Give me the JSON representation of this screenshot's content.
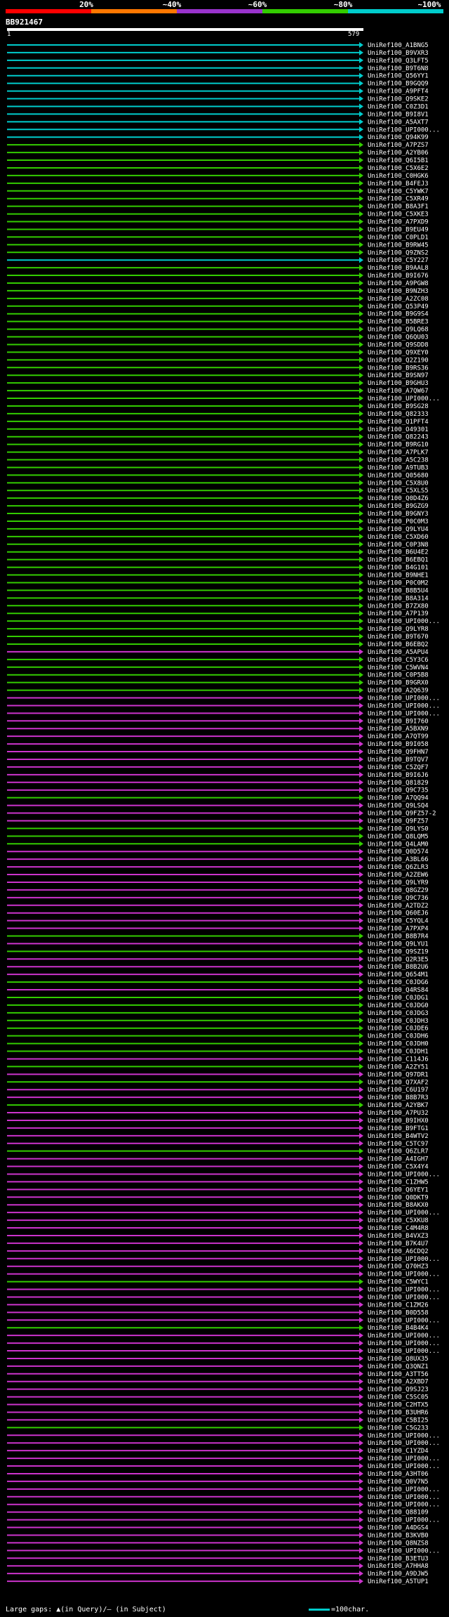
{
  "thresholds": [
    "20%",
    "~40%",
    "~60%",
    "~80%",
    "~100%"
  ],
  "colors": {
    "<20": "#ff0000",
    "20": "#ff7700",
    "40": "#9933cc",
    "60": "#cc33cc",
    "80": "#33cc00",
    "100": "#00cccc"
  },
  "query": {
    "name": "BB921467",
    "start": "1",
    "end": "579",
    "length": 579
  },
  "footer": {
    "gaps": "Large gaps: ▲(in Query)/— (in Subject)",
    "scale": "=100char."
  },
  "chart_data": {
    "type": "alignment-overview",
    "hits": [
      {
        "label": "UniRef100_A1BNG5",
        "c": "100"
      },
      {
        "label": "UniRef100_B9VXR3",
        "c": "100"
      },
      {
        "label": "UniRef100_Q3LFT5",
        "c": "100"
      },
      {
        "label": "UniRef100_B9T6N8",
        "c": "100"
      },
      {
        "label": "UniRef100_Q56YY1",
        "c": "100"
      },
      {
        "label": "UniRef100_B9GQQ9",
        "c": "100"
      },
      {
        "label": "UniRef100_A9PFT4",
        "c": "100"
      },
      {
        "label": "UniRef100_Q9SKE2",
        "c": "100"
      },
      {
        "label": "UniRef100_C0Z3D1",
        "c": "100"
      },
      {
        "label": "UniRef100_B9I8V1",
        "c": "100"
      },
      {
        "label": "UniRef100_A5AXT7",
        "c": "100"
      },
      {
        "label": "UniRef100_UPI000...",
        "c": "100"
      },
      {
        "label": "UniRef100_Q94K99",
        "c": "100"
      },
      {
        "label": "UniRef100_A7PZS7",
        "c": "80"
      },
      {
        "label": "UniRef100_A2YB06",
        "c": "80"
      },
      {
        "label": "UniRef100_Q6I5B1",
        "c": "80"
      },
      {
        "label": "UniRef100_C5X6E2",
        "c": "80"
      },
      {
        "label": "UniRef100_C0HGK6",
        "c": "80"
      },
      {
        "label": "UniRef100_B4FEJ3",
        "c": "80"
      },
      {
        "label": "UniRef100_C5YWK7",
        "c": "80"
      },
      {
        "label": "UniRef100_C5XR49",
        "c": "80"
      },
      {
        "label": "UniRef100_B8A3F1",
        "c": "80"
      },
      {
        "label": "UniRef100_C5XKE3",
        "c": "80"
      },
      {
        "label": "UniRef100_A7PXD9",
        "c": "80"
      },
      {
        "label": "UniRef100_B9EU49",
        "c": "80"
      },
      {
        "label": "UniRef100_C0PLD1",
        "c": "80"
      },
      {
        "label": "UniRef100_B9RW45",
        "c": "80"
      },
      {
        "label": "UniRef100_Q9ZNS2",
        "c": "80"
      },
      {
        "label": "UniRef100_C5Y227",
        "c": "100"
      },
      {
        "label": "UniRef100_B9AAL8",
        "c": "80"
      },
      {
        "label": "UniRef100_B9I676",
        "c": "80"
      },
      {
        "label": "UniRef100_A9PGW8",
        "c": "80"
      },
      {
        "label": "UniRef100_B9NZH3",
        "c": "80"
      },
      {
        "label": "UniRef100_A2ZC08",
        "c": "80"
      },
      {
        "label": "UniRef100_Q53P49",
        "c": "80"
      },
      {
        "label": "UniRef100_B9G9S4",
        "c": "80"
      },
      {
        "label": "UniRef100_B5BRE3",
        "c": "80"
      },
      {
        "label": "UniRef100_Q9LQ68",
        "c": "80"
      },
      {
        "label": "UniRef100_Q6QU03",
        "c": "80"
      },
      {
        "label": "UniRef100_Q9SDD8",
        "c": "80"
      },
      {
        "label": "UniRef100_Q9XEY0",
        "c": "80"
      },
      {
        "label": "UniRef100_Q2Z190",
        "c": "80"
      },
      {
        "label": "UniRef100_B9RS36",
        "c": "80"
      },
      {
        "label": "UniRef100_B9SN97",
        "c": "80"
      },
      {
        "label": "UniRef100_B9GHU3",
        "c": "80"
      },
      {
        "label": "UniRef100_A7QW67",
        "c": "80"
      },
      {
        "label": "UniRef100_UPI000...",
        "c": "80"
      },
      {
        "label": "UniRef100_B9SG28",
        "c": "80"
      },
      {
        "label": "UniRef100_Q82333",
        "c": "80"
      },
      {
        "label": "UniRef100_Q1PFT4",
        "c": "80"
      },
      {
        "label": "UniRef100_O49301",
        "c": "80"
      },
      {
        "label": "UniRef100_Q82243",
        "c": "80"
      },
      {
        "label": "UniRef100_B9RG10",
        "c": "80"
      },
      {
        "label": "UniRef100_A7PLK7",
        "c": "80"
      },
      {
        "label": "UniRef100_A5C238",
        "c": "80"
      },
      {
        "label": "UniRef100_A9TUB3",
        "c": "80"
      },
      {
        "label": "UniRef100_Q05680",
        "c": "80"
      },
      {
        "label": "UniRef100_C5X8U0",
        "c": "80"
      },
      {
        "label": "UniRef100_C5XLS5",
        "c": "80"
      },
      {
        "label": "UniRef100_Q0D4Z6",
        "c": "80"
      },
      {
        "label": "UniRef100_B9GZG9",
        "c": "80"
      },
      {
        "label": "UniRef100_B9GNY3",
        "c": "80"
      },
      {
        "label": "UniRef100_P0C0M3",
        "c": "80"
      },
      {
        "label": "UniRef100_Q9LYU4",
        "c": "80"
      },
      {
        "label": "UniRef100_C5XD60",
        "c": "80"
      },
      {
        "label": "UniRef100_C0P3N8",
        "c": "80"
      },
      {
        "label": "UniRef100_B6U4E2",
        "c": "80"
      },
      {
        "label": "UniRef100_B6EBQ1",
        "c": "80"
      },
      {
        "label": "UniRef100_B4G101",
        "c": "80"
      },
      {
        "label": "UniRef100_B9NHE1",
        "c": "80"
      },
      {
        "label": "UniRef100_P0C0M2",
        "c": "80"
      },
      {
        "label": "UniRef100_B8B5U4",
        "c": "80"
      },
      {
        "label": "UniRef100_B8A314",
        "c": "80"
      },
      {
        "label": "UniRef100_B7ZX80",
        "c": "80"
      },
      {
        "label": "UniRef100_A7P139",
        "c": "80"
      },
      {
        "label": "UniRef100_UPI000...",
        "c": "80"
      },
      {
        "label": "UniRef100_Q9LYR8",
        "c": "80"
      },
      {
        "label": "UniRef100_B9T670",
        "c": "80"
      },
      {
        "label": "UniRef100_B6EBQ2",
        "c": "80"
      },
      {
        "label": "UniRef100_A5APU4",
        "c": "60"
      },
      {
        "label": "UniRef100_C5Y3C6",
        "c": "80"
      },
      {
        "label": "UniRef100_C5WVN4",
        "c": "80"
      },
      {
        "label": "UniRef100_C0P5B8",
        "c": "80"
      },
      {
        "label": "UniRef100_B9GRX0",
        "c": "80"
      },
      {
        "label": "UniRef100_A2Q639",
        "c": "80"
      },
      {
        "label": "UniRef100_UPI000...",
        "c": "60"
      },
      {
        "label": "UniRef100_UPI000...",
        "c": "60"
      },
      {
        "label": "UniRef100_UPI000...",
        "c": "60"
      },
      {
        "label": "UniRef100_B9I760",
        "c": "60"
      },
      {
        "label": "UniRef100_A5BXN9",
        "c": "60"
      },
      {
        "label": "UniRef100_A7QT99",
        "c": "60"
      },
      {
        "label": "UniRef100_B9I058",
        "c": "60"
      },
      {
        "label": "UniRef100_Q9FHN7",
        "c": "60"
      },
      {
        "label": "UniRef100_B9TQV7",
        "c": "60"
      },
      {
        "label": "UniRef100_C5ZQF7",
        "c": "60"
      },
      {
        "label": "UniRef100_B9I6J6",
        "c": "60"
      },
      {
        "label": "UniRef100_Q81829",
        "c": "60"
      },
      {
        "label": "UniRef100_Q9C735",
        "c": "60"
      },
      {
        "label": "UniRef100_A7QQ94",
        "c": "80"
      },
      {
        "label": "UniRef100_Q9LSQ4",
        "c": "60"
      },
      {
        "label": "UniRef100_Q9FZ57-2",
        "c": "60"
      },
      {
        "label": "UniRef100_Q9FZ57",
        "c": "60"
      },
      {
        "label": "UniRef100_Q9LYS0",
        "c": "80"
      },
      {
        "label": "UniRef100_Q8LQM5",
        "c": "80"
      },
      {
        "label": "UniRef100_Q4LAM0",
        "c": "80"
      },
      {
        "label": "UniRef100_Q0D574",
        "c": "60"
      },
      {
        "label": "UniRef100_A3BL66",
        "c": "60"
      },
      {
        "label": "UniRef100_Q6ZLR3",
        "c": "60"
      },
      {
        "label": "UniRef100_A2ZEW6",
        "c": "60"
      },
      {
        "label": "UniRef100_Q9LYR9",
        "c": "60"
      },
      {
        "label": "UniRef100_Q8GZ29",
        "c": "60"
      },
      {
        "label": "UniRef100_Q9C736",
        "c": "60"
      },
      {
        "label": "UniRef100_A2TDZ2",
        "c": "60"
      },
      {
        "label": "UniRef100_Q60EJ6",
        "c": "60"
      },
      {
        "label": "UniRef100_C5YQL4",
        "c": "60"
      },
      {
        "label": "UniRef100_A7PXP4",
        "c": "60"
      },
      {
        "label": "UniRef100_B8B7R4",
        "c": "80"
      },
      {
        "label": "UniRef100_Q9LYU1",
        "c": "60"
      },
      {
        "label": "UniRef100_Q9SZ19",
        "c": "80"
      },
      {
        "label": "UniRef100_Q2R3E5",
        "c": "60"
      },
      {
        "label": "UniRef100_B8B2U6",
        "c": "60"
      },
      {
        "label": "UniRef100_Q654M1",
        "c": "60"
      },
      {
        "label": "UniRef100_C0JDG6",
        "c": "80"
      },
      {
        "label": "UniRef100_Q4RS84",
        "c": "60"
      },
      {
        "label": "UniRef100_C0JDG1",
        "c": "80"
      },
      {
        "label": "UniRef100_C0JDG0",
        "c": "80"
      },
      {
        "label": "UniRef100_C0JDG3",
        "c": "80"
      },
      {
        "label": "UniRef100_C0JDH3",
        "c": "80"
      },
      {
        "label": "UniRef100_C0JDE6",
        "c": "80"
      },
      {
        "label": "UniRef100_C0JDH6",
        "c": "80"
      },
      {
        "label": "UniRef100_C0JDH0",
        "c": "80"
      },
      {
        "label": "UniRef100_C0JDH1",
        "c": "80"
      },
      {
        "label": "UniRef100_C114J6",
        "c": "60"
      },
      {
        "label": "UniRef100_A2ZY51",
        "c": "80"
      },
      {
        "label": "UniRef100_Q97DR1",
        "c": "60"
      },
      {
        "label": "UniRef100_Q7XAF2",
        "c": "80"
      },
      {
        "label": "UniRef100_C6U197",
        "c": "60"
      },
      {
        "label": "UniRef100_B8B7R3",
        "c": "60"
      },
      {
        "label": "UniRef100_A2YBK7",
        "c": "80"
      },
      {
        "label": "UniRef100_A7PU32",
        "c": "60"
      },
      {
        "label": "UniRef100_B9IHX0",
        "c": "60"
      },
      {
        "label": "UniRef100_B9FTG1",
        "c": "60"
      },
      {
        "label": "UniRef100_B4WTV2",
        "c": "60"
      },
      {
        "label": "UniRef100_C5TC97",
        "c": "60"
      },
      {
        "label": "UniRef100_Q6ZLR7",
        "c": "80"
      },
      {
        "label": "UniRef100_A4IGH7",
        "c": "60"
      },
      {
        "label": "UniRef100_C5X4Y4",
        "c": "60"
      },
      {
        "label": "UniRef100_UPI000...",
        "c": "60"
      },
      {
        "label": "UniRef100_C1ZHW5",
        "c": "60"
      },
      {
        "label": "UniRef100_Q6YEY1",
        "c": "60"
      },
      {
        "label": "UniRef100_Q0DKT9",
        "c": "60"
      },
      {
        "label": "UniRef100_B8AKX0",
        "c": "60"
      },
      {
        "label": "UniRef100_UPI000...",
        "c": "60"
      },
      {
        "label": "UniRef100_C5XKU8",
        "c": "60"
      },
      {
        "label": "UniRef100_C4M4R8",
        "c": "60"
      },
      {
        "label": "UniRef100_B4VXZ3",
        "c": "60"
      },
      {
        "label": "UniRef100_B7K4U7",
        "c": "60"
      },
      {
        "label": "UniRef100_A6CDQ2",
        "c": "60"
      },
      {
        "label": "UniRef100_UPI000...",
        "c": "60"
      },
      {
        "label": "UniRef100_Q70HZ3",
        "c": "60"
      },
      {
        "label": "UniRef100_UPI000...",
        "c": "60"
      },
      {
        "label": "UniRef100_C5WYC1",
        "c": "80"
      },
      {
        "label": "UniRef100_UPI000...",
        "c": "60"
      },
      {
        "label": "UniRef100_UPI000...",
        "c": "60"
      },
      {
        "label": "UniRef100_C1ZM26",
        "c": "60"
      },
      {
        "label": "UniRef100_B0D558",
        "c": "60"
      },
      {
        "label": "UniRef100_UPI000...",
        "c": "60"
      },
      {
        "label": "UniRef100_B4B4K4",
        "c": "80"
      },
      {
        "label": "UniRef100_UPI000...",
        "c": "60"
      },
      {
        "label": "UniRef100_UPI000...",
        "c": "60"
      },
      {
        "label": "UniRef100_UPI000...",
        "c": "60"
      },
      {
        "label": "UniRef100_Q8UX35",
        "c": "60"
      },
      {
        "label": "UniRef100_Q3QNZ1",
        "c": "60"
      },
      {
        "label": "UniRef100_A3TT56",
        "c": "60"
      },
      {
        "label": "UniRef100_A2XBD7",
        "c": "60"
      },
      {
        "label": "UniRef100_Q9SJ23",
        "c": "60"
      },
      {
        "label": "UniRef100_C5SC05",
        "c": "60"
      },
      {
        "label": "UniRef100_C2HTX5",
        "c": "60"
      },
      {
        "label": "UniRef100_B3UHR6",
        "c": "60"
      },
      {
        "label": "UniRef100_C5BI25",
        "c": "60"
      },
      {
        "label": "UniRef100_C5G233",
        "c": "80"
      },
      {
        "label": "UniRef100_UPI000...",
        "c": "60"
      },
      {
        "label": "UniRef100_UPI000...",
        "c": "60"
      },
      {
        "label": "UniRef100_C1YZD4",
        "c": "60"
      },
      {
        "label": "UniRef100_UPI000...",
        "c": "60"
      },
      {
        "label": "UniRef100_UPI000...",
        "c": "60"
      },
      {
        "label": "UniRef100_A3HT06",
        "c": "60"
      },
      {
        "label": "UniRef100_Q0V7N5",
        "c": "60"
      },
      {
        "label": "UniRef100_UPI000...",
        "c": "60"
      },
      {
        "label": "UniRef100_UPI000...",
        "c": "60"
      },
      {
        "label": "UniRef100_UPI000...",
        "c": "60"
      },
      {
        "label": "UniRef100_Q88109",
        "c": "60"
      },
      {
        "label": "UniRef100_UPI000...",
        "c": "60"
      },
      {
        "label": "UniRef100_A4DGS4",
        "c": "60"
      },
      {
        "label": "UniRef100_B3KVB0",
        "c": "60"
      },
      {
        "label": "UniRef100_Q8NZS8",
        "c": "60"
      },
      {
        "label": "UniRef100_UPI000...",
        "c": "60"
      },
      {
        "label": "UniRef100_B3ETU3",
        "c": "60"
      },
      {
        "label": "UniRef100_A7HHA8",
        "c": "60"
      },
      {
        "label": "UniRef100_A9DJW5",
        "c": "60"
      },
      {
        "label": "UniRef100_A5TUP1",
        "c": "60"
      }
    ]
  }
}
